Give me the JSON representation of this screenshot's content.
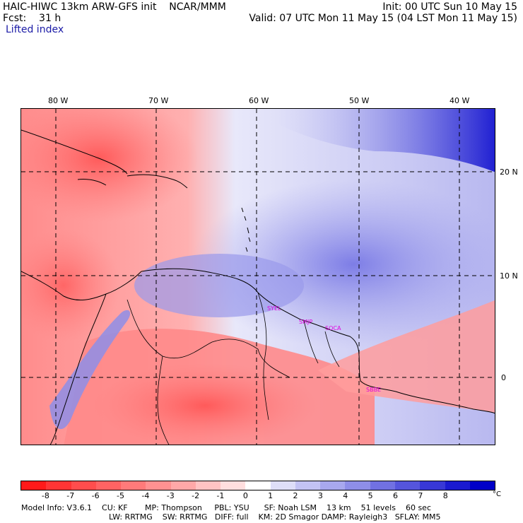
{
  "header": {
    "title": "HAIC-HIWC 13km ARW-GFS init    NCAR/MMM",
    "init": "Init: 00 UTC Sun 10 May 15",
    "fcst": "Fcst:    31 h",
    "valid": "Valid: 07 UTC Mon 11 May 15 (04 LST Mon 11 May 15)",
    "field": "Lifted index"
  },
  "map": {
    "lon_labels": [
      "80 W",
      "70 W",
      "60 W",
      "50 W",
      "40 W"
    ],
    "lat_labels": [
      "20 N",
      "10 N",
      "0"
    ],
    "stations": [
      "SYEL",
      "SMJP",
      "SOCA",
      "SBBE"
    ]
  },
  "colorbar": {
    "ticks": [
      "-8",
      "-7",
      "-6",
      "-5",
      "-4",
      "-3",
      "-2",
      "-1",
      "0",
      "1",
      "2",
      "3",
      "4",
      "5",
      "6",
      "7",
      "8"
    ],
    "unit": "°C",
    "colors": [
      "#ff1a1a",
      "#ff3535",
      "#ff4d4d",
      "#ff6363",
      "#ff7a7a",
      "#ff9191",
      "#ffa8a8",
      "#ffc3c3",
      "#ffdede",
      "#ffffff",
      "#dedef8",
      "#c3c3f3",
      "#a8a8ee",
      "#8e8ee8",
      "#7171e2",
      "#5555dc",
      "#3838d6",
      "#1a1ad0",
      "#0000c8"
    ]
  },
  "footer": {
    "line1": "Model Info: V3.6.1    CU: KF       MP: Thompson     PBL: YSU      SF: Noah LSM    13 km    51 levels    60 sec",
    "line2": "LW: RRTMG    SW: RRTMG   DIFF: full    KM: 2D Smagor DAMP: Rayleigh3   SFLAY: MM5"
  }
}
